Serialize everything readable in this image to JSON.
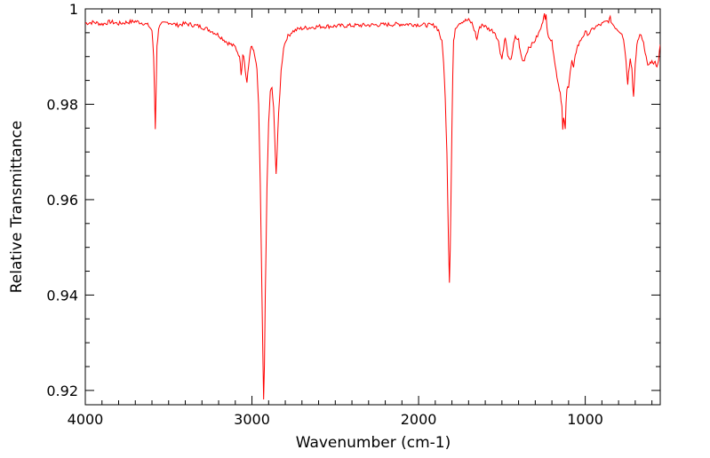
{
  "chart_data": {
    "type": "line",
    "title": "",
    "xlabel": "Wavenumber (cm-1)",
    "ylabel": "Relative Transmittance",
    "xlim": [
      4000,
      550
    ],
    "ylim": [
      0.917,
      1.0
    ],
    "x_reversed": true,
    "grid": false,
    "legend": "none",
    "x_major_ticks": [
      4000,
      3000,
      2000,
      1000
    ],
    "x_tick_labels": [
      "4000",
      "3000",
      "2000",
      "1000"
    ],
    "y_major_ticks": [
      1.0,
      0.98,
      0.96,
      0.94,
      0.92
    ],
    "y_tick_labels": [
      "1",
      "0.98",
      "0.96",
      "0.94",
      "0.92"
    ],
    "series": [
      {
        "color": "#ff0000",
        "points": [
          [
            4000,
            0.997
          ],
          [
            3950,
            0.9972
          ],
          [
            3900,
            0.9968
          ],
          [
            3850,
            0.9973
          ],
          [
            3800,
            0.9969
          ],
          [
            3750,
            0.9972
          ],
          [
            3700,
            0.9974
          ],
          [
            3650,
            0.997
          ],
          [
            3620,
            0.9965
          ],
          [
            3600,
            0.9955
          ],
          [
            3590,
            0.99
          ],
          [
            3585,
            0.983
          ],
          [
            3580,
            0.975
          ],
          [
            3575,
            0.983
          ],
          [
            3570,
            0.992
          ],
          [
            3560,
            0.996
          ],
          [
            3540,
            0.9968
          ],
          [
            3500,
            0.9972
          ],
          [
            3450,
            0.9966
          ],
          [
            3400,
            0.9969
          ],
          [
            3350,
            0.9966
          ],
          [
            3300,
            0.9962
          ],
          [
            3250,
            0.9955
          ],
          [
            3200,
            0.9945
          ],
          [
            3150,
            0.993
          ],
          [
            3100,
            0.992
          ],
          [
            3080,
            0.9905
          ],
          [
            3070,
            0.989
          ],
          [
            3065,
            0.9865
          ],
          [
            3060,
            0.988
          ],
          [
            3055,
            0.9905
          ],
          [
            3050,
            0.9905
          ],
          [
            3040,
            0.987
          ],
          [
            3030,
            0.9845
          ],
          [
            3020,
            0.988
          ],
          [
            3010,
            0.9915
          ],
          [
            3000,
            0.992
          ],
          [
            2990,
            0.991
          ],
          [
            2980,
            0.9895
          ],
          [
            2970,
            0.987
          ],
          [
            2960,
            0.98
          ],
          [
            2950,
            0.963
          ],
          [
            2940,
            0.94
          ],
          [
            2935,
            0.928
          ],
          [
            2930,
            0.918
          ],
          [
            2925,
            0.925
          ],
          [
            2920,
            0.94
          ],
          [
            2910,
            0.962
          ],
          [
            2900,
            0.976
          ],
          [
            2890,
            0.9825
          ],
          [
            2880,
            0.9835
          ],
          [
            2870,
            0.979
          ],
          [
            2860,
            0.97
          ],
          [
            2855,
            0.9655
          ],
          [
            2850,
            0.969
          ],
          [
            2840,
            0.978
          ],
          [
            2825,
            0.987
          ],
          [
            2810,
            0.992
          ],
          [
            2790,
            0.994
          ],
          [
            2760,
            0.9952
          ],
          [
            2720,
            0.9958
          ],
          [
            2680,
            0.996
          ],
          [
            2600,
            0.9963
          ],
          [
            2500,
            0.9964
          ],
          [
            2400,
            0.9965
          ],
          [
            2300,
            0.9966
          ],
          [
            2200,
            0.9967
          ],
          [
            2100,
            0.9968
          ],
          [
            2050,
            0.9968
          ],
          [
            2000,
            0.9967
          ],
          [
            1950,
            0.9966
          ],
          [
            1900,
            0.9965
          ],
          [
            1880,
            0.9955
          ],
          [
            1860,
            0.993
          ],
          [
            1850,
            0.989
          ],
          [
            1840,
            0.981
          ],
          [
            1830,
            0.97
          ],
          [
            1825,
            0.96
          ],
          [
            1820,
            0.95
          ],
          [
            1815,
            0.943
          ],
          [
            1810,
            0.95
          ],
          [
            1805,
            0.962
          ],
          [
            1800,
            0.975
          ],
          [
            1795,
            0.986
          ],
          [
            1790,
            0.993
          ],
          [
            1780,
            0.996
          ],
          [
            1760,
            0.997
          ],
          [
            1730,
            0.9975
          ],
          [
            1700,
            0.9976
          ],
          [
            1680,
            0.997
          ],
          [
            1660,
            0.995
          ],
          [
            1650,
            0.9935
          ],
          [
            1640,
            0.9955
          ],
          [
            1620,
            0.9968
          ],
          [
            1600,
            0.9963
          ],
          [
            1580,
            0.9958
          ],
          [
            1560,
            0.9955
          ],
          [
            1540,
            0.995
          ],
          [
            1520,
            0.993
          ],
          [
            1510,
            0.991
          ],
          [
            1500,
            0.9895
          ],
          [
            1490,
            0.992
          ],
          [
            1480,
            0.994
          ],
          [
            1470,
            0.9915
          ],
          [
            1460,
            0.9895
          ],
          [
            1450,
            0.989
          ],
          [
            1440,
            0.9905
          ],
          [
            1430,
            0.9925
          ],
          [
            1420,
            0.994
          ],
          [
            1400,
            0.9935
          ],
          [
            1390,
            0.991
          ],
          [
            1380,
            0.9895
          ],
          [
            1370,
            0.989
          ],
          [
            1360,
            0.99
          ],
          [
            1340,
            0.992
          ],
          [
            1320,
            0.9925
          ],
          [
            1300,
            0.9935
          ],
          [
            1280,
            0.9948
          ],
          [
            1260,
            0.9965
          ],
          [
            1250,
            0.9985
          ],
          [
            1245,
            0.9995
          ],
          [
            1240,
            0.9975
          ],
          [
            1235,
            0.9985
          ],
          [
            1230,
            0.996
          ],
          [
            1220,
            0.9945
          ],
          [
            1200,
            0.993
          ],
          [
            1190,
            0.991
          ],
          [
            1180,
            0.988
          ],
          [
            1170,
            0.986
          ],
          [
            1160,
            0.984
          ],
          [
            1150,
            0.9825
          ],
          [
            1140,
            0.9795
          ],
          [
            1135,
            0.9745
          ],
          [
            1130,
            0.977
          ],
          [
            1120,
            0.975
          ],
          [
            1115,
            0.98
          ],
          [
            1110,
            0.983
          ],
          [
            1100,
            0.984
          ],
          [
            1090,
            0.987
          ],
          [
            1080,
            0.989
          ],
          [
            1070,
            0.9875
          ],
          [
            1060,
            0.99
          ],
          [
            1050,
            0.992
          ],
          [
            1040,
            0.9925
          ],
          [
            1020,
            0.994
          ],
          [
            1000,
            0.995
          ],
          [
            980,
            0.9948
          ],
          [
            960,
            0.9955
          ],
          [
            940,
            0.9962
          ],
          [
            920,
            0.9965
          ],
          [
            900,
            0.9968
          ],
          [
            880,
            0.9972
          ],
          [
            860,
            0.9975
          ],
          [
            850,
            0.998
          ],
          [
            840,
            0.997
          ],
          [
            820,
            0.9962
          ],
          [
            800,
            0.9955
          ],
          [
            780,
            0.995
          ],
          [
            770,
            0.9935
          ],
          [
            760,
            0.991
          ],
          [
            750,
            0.9865
          ],
          [
            745,
            0.9845
          ],
          [
            740,
            0.987
          ],
          [
            730,
            0.9895
          ],
          [
            720,
            0.9875
          ],
          [
            715,
            0.984
          ],
          [
            710,
            0.9815
          ],
          [
            705,
            0.9845
          ],
          [
            700,
            0.988
          ],
          [
            690,
            0.9925
          ],
          [
            680,
            0.994
          ],
          [
            665,
            0.9945
          ],
          [
            650,
            0.993
          ],
          [
            640,
            0.991
          ],
          [
            630,
            0.989
          ],
          [
            620,
            0.988
          ],
          [
            610,
            0.9885
          ],
          [
            600,
            0.989
          ],
          [
            590,
            0.9882
          ],
          [
            580,
            0.9888
          ],
          [
            570,
            0.9875
          ],
          [
            560,
            0.989
          ],
          [
            550,
            0.9925
          ]
        ]
      }
    ]
  }
}
